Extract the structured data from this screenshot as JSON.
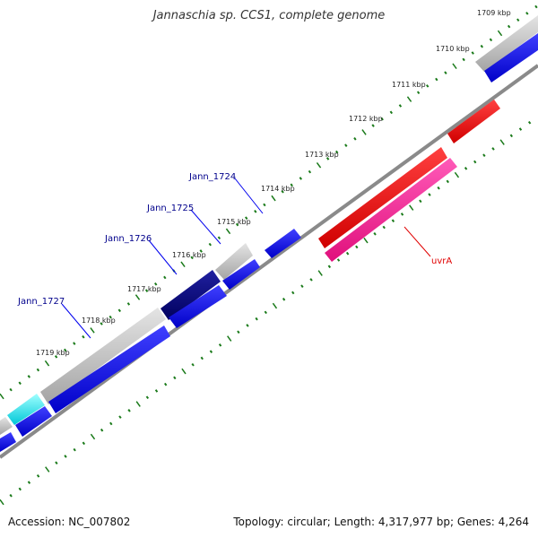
{
  "title": "Jannaschia sp. CCS1, complete genome",
  "footer": {
    "accession": "Accession: NC_007802",
    "summary": "Topology: circular; Length: 4,317,977 bp; Genes: 4,264"
  },
  "ticks": [
    {
      "label": "1709 kbp"
    },
    {
      "label": "1710 kbp"
    },
    {
      "label": "1711 kbp"
    },
    {
      "label": "1712 kbp"
    },
    {
      "label": "1713 kbp"
    },
    {
      "label": "1714 kbp"
    },
    {
      "label": "1715 kbp"
    },
    {
      "label": "1716 kbp"
    },
    {
      "label": "1717 kbp"
    },
    {
      "label": "1718 kbp"
    },
    {
      "label": "1719 kbp"
    }
  ],
  "gene_labels": [
    {
      "text": "Jann_1724",
      "color": "#00008b"
    },
    {
      "text": "Jann_1725",
      "color": "#00008b"
    },
    {
      "text": "Jann_1726",
      "color": "#00008b"
    },
    {
      "text": "Jann_1727",
      "color": "#00008b"
    },
    {
      "text": "uvrA",
      "color": "#e00000"
    }
  ],
  "colors": {
    "backbone": "#8a8a8a",
    "tick_green": "#1a7a1a",
    "cds_blue": "#0000ee",
    "cds_gray": "#b8b8b8",
    "cds_navy": "#000080",
    "cds_cyan": "#00e5ee",
    "cds_red": "#ee0000",
    "cds_pink": "#ee1493",
    "label_blue": "#00008b",
    "label_red": "#e00000"
  }
}
